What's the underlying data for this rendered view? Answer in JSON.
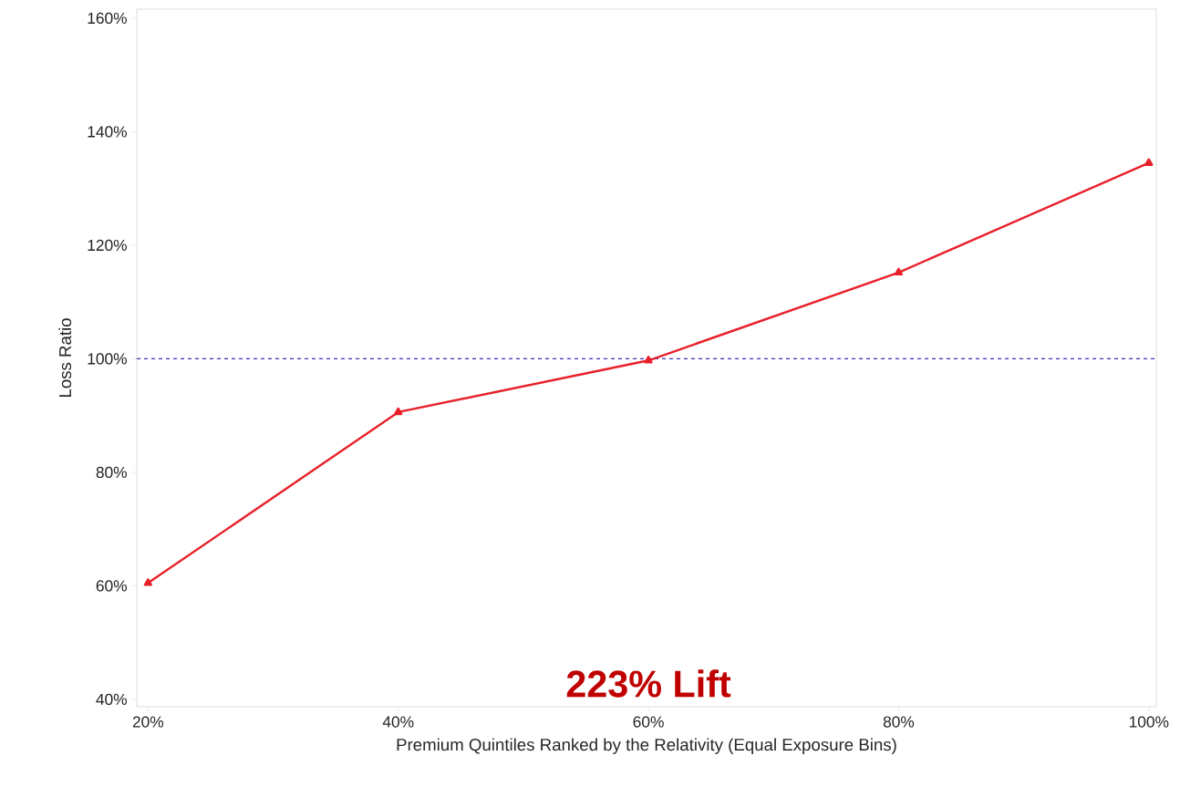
{
  "chart_data": {
    "type": "line",
    "xlabel": "Premium Quintiles Ranked by the Relativity (Equal Exposure Bins)",
    "ylabel": "Loss Ratio",
    "x": [
      20,
      40,
      60,
      80,
      100
    ],
    "series": [
      {
        "color": "#e8202a",
        "values": [
          60.5,
          90.6,
          99.7,
          115.2,
          134.5
        ]
      }
    ],
    "marker": "triangle",
    "line_style": "solid",
    "grid": false,
    "xlim": [
      19.1,
      100.6
    ],
    "ylim": [
      38.7,
      161.6
    ],
    "xticks": [
      {
        "value": 20,
        "label": "20%"
      },
      {
        "value": 40,
        "label": "40%"
      },
      {
        "value": 60,
        "label": "60%"
      },
      {
        "value": 80,
        "label": "80%"
      },
      {
        "value": 100,
        "label": "100%"
      }
    ],
    "yticks": [
      {
        "value": 40,
        "label": "40%"
      },
      {
        "value": 60,
        "label": "60%"
      },
      {
        "value": 80,
        "label": "80%"
      },
      {
        "value": 100,
        "label": "100%"
      },
      {
        "value": 120,
        "label": "120%"
      },
      {
        "value": 140,
        "label": "140%"
      },
      {
        "value": 160,
        "label": "160%"
      }
    ],
    "ref_lines": [
      {
        "axis": "y",
        "value": 100,
        "color": "#3333bb",
        "line_style": "dashed"
      }
    ],
    "annotations": [
      "223% Lift"
    ]
  }
}
